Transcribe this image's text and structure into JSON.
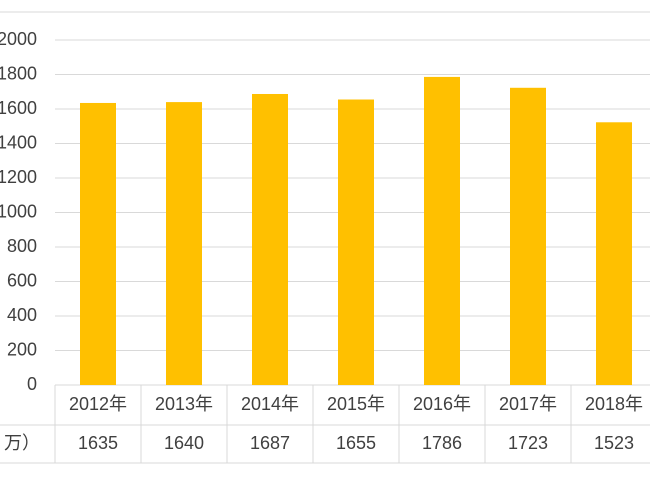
{
  "chart_data": {
    "type": "bar",
    "categories": [
      "2012年",
      "2013年",
      "2014年",
      "2015年",
      "2016年",
      "2017年",
      "2018年"
    ],
    "values": [
      1635,
      1640,
      1687,
      1655,
      1786,
      1723,
      1523
    ],
    "color": "#ffc000",
    "ylim": [
      0,
      2000
    ],
    "yticks": [
      0,
      200,
      400,
      600,
      800,
      1000,
      1200,
      1400,
      1600,
      1800,
      2000
    ],
    "grid": true,
    "table_row_label": "万）"
  }
}
